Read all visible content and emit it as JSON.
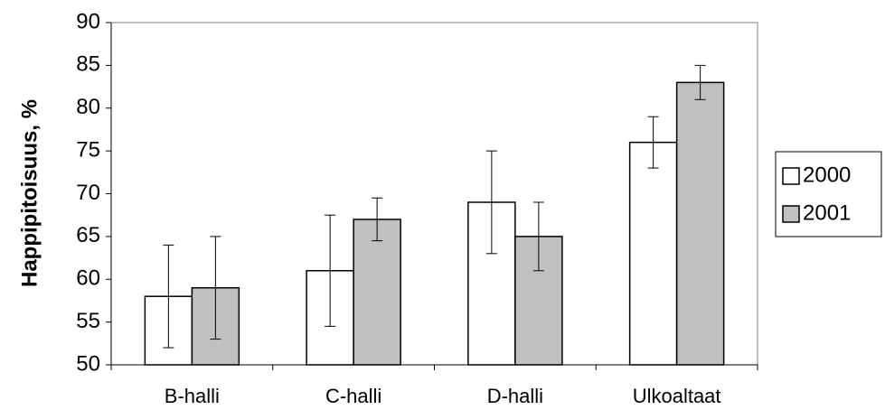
{
  "chart_data": {
    "type": "bar",
    "y_label": "Happipitoisuus, %",
    "categories": [
      "B-halli",
      "C-halli",
      "D-halli",
      "Ulkoaltaat"
    ],
    "series": [
      {
        "name": "2000",
        "color": "#ffffff",
        "values": [
          58,
          61,
          69,
          76
        ],
        "errors": [
          6,
          6.5,
          6,
          3
        ]
      },
      {
        "name": "2001",
        "color": "#c0c0c0",
        "values": [
          59,
          67,
          65,
          83
        ],
        "errors": [
          6,
          2.5,
          4,
          2
        ]
      }
    ],
    "ylim": [
      50,
      90
    ],
    "yticks": [
      50,
      55,
      60,
      65,
      70,
      75,
      80,
      85,
      90
    ],
    "legend": "right"
  }
}
